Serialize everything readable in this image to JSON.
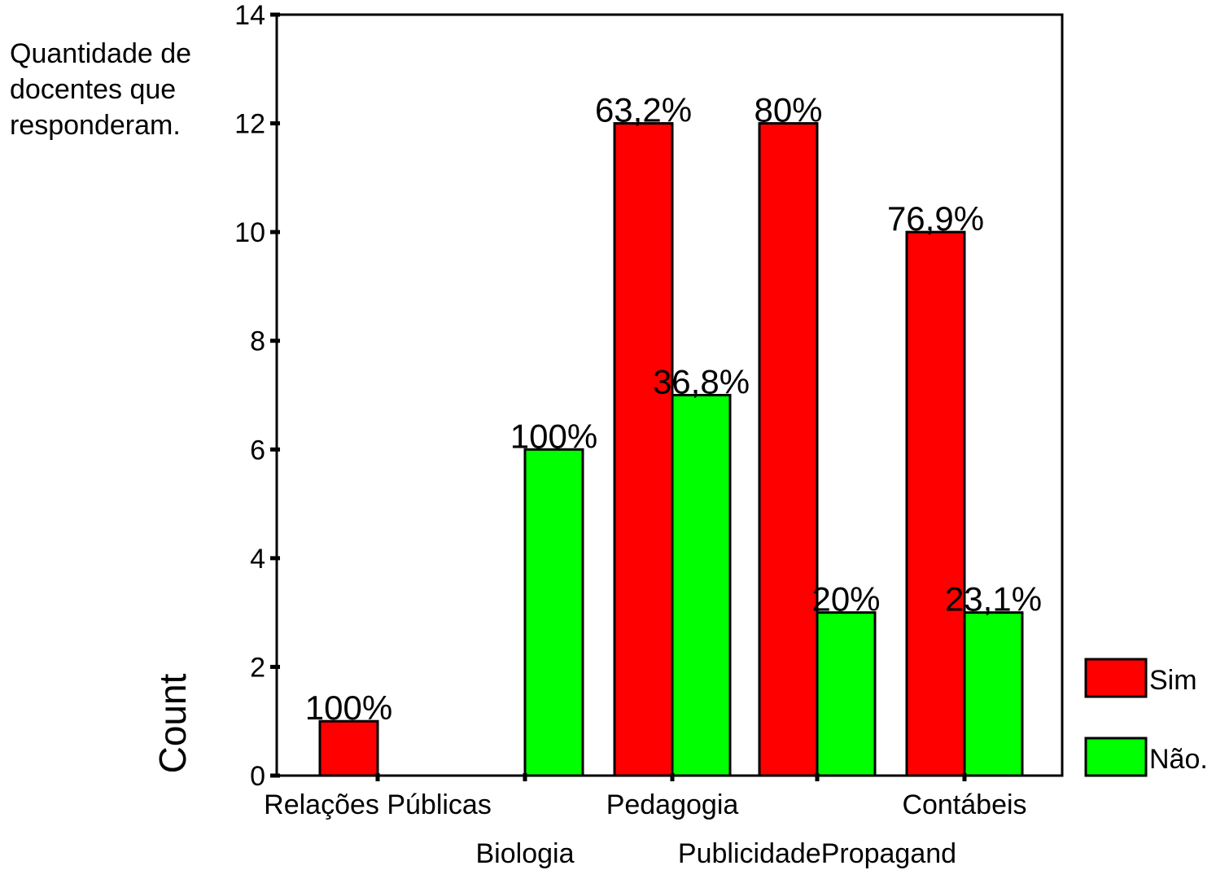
{
  "note_text": "Quantidade de\ndocentes que\nresponderam.",
  "chart_data": {
    "type": "bar",
    "ylabel": "Count",
    "ylim": [
      0,
      14
    ],
    "yticks": [
      0,
      2,
      4,
      6,
      8,
      10,
      12,
      14
    ],
    "grid": false,
    "legend_position": "right",
    "categories": [
      "Relações Públicas",
      "Biologia",
      "Pedagogia",
      "PublicidadePropagand",
      "Contábeis"
    ],
    "series": [
      {
        "name": "Sim",
        "color": "#ff0000",
        "values": [
          1,
          0,
          12,
          12,
          10
        ],
        "labels": [
          "100%",
          "",
          "63,2%",
          "80%",
          "76,9%"
        ]
      },
      {
        "name": "Não.",
        "color": "#00ff00",
        "values": [
          0,
          6,
          7,
          3,
          3
        ],
        "labels": [
          "",
          "100%",
          "36,8%",
          "20%",
          "23,1%"
        ]
      }
    ]
  }
}
